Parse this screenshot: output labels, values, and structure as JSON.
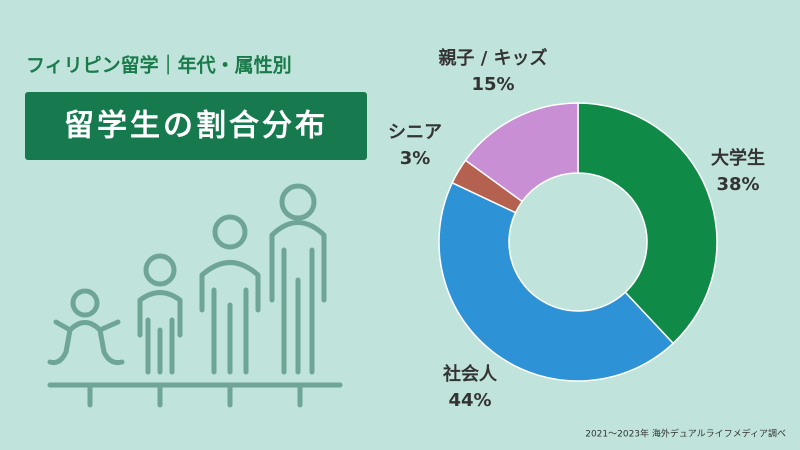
{
  "chart_data": {
    "type": "pie",
    "subtitle": "フィリピン留学｜年代・属性別",
    "title": "留学生の割合分布",
    "source": "2021〜2023年 海外デュアルライフメディア調べ",
    "categories": [
      "大学生",
      "社会人",
      "シニア",
      "親子 / キッズ"
    ],
    "values": [
      38,
      44,
      3,
      15
    ],
    "value_labels": [
      "38%",
      "44%",
      "3%",
      "15%"
    ],
    "colors": [
      "#0f8a47",
      "#2e92d6",
      "#b5614f",
      "#c98fd4"
    ],
    "donut": true
  }
}
